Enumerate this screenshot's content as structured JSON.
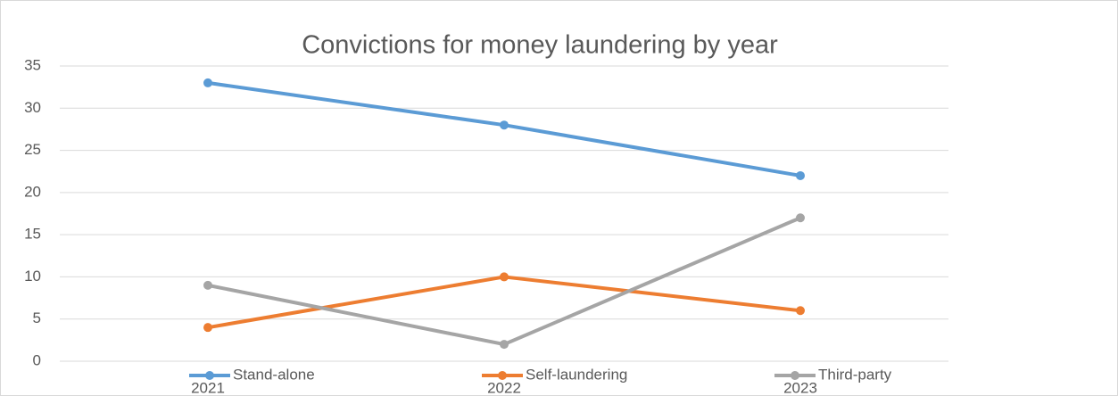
{
  "chart_data": {
    "type": "line",
    "title": "Convictions for money laundering by year",
    "categories": [
      "2021",
      "2022",
      "2023"
    ],
    "series": [
      {
        "name": "Stand-alone",
        "color": "#5b9bd5",
        "values": [
          33,
          28,
          22
        ]
      },
      {
        "name": "Self-laundering",
        "color": "#ed7d31",
        "values": [
          4,
          10,
          6
        ]
      },
      {
        "name": "Third-party",
        "color": "#a5a5a5",
        "values": [
          9,
          2,
          17
        ]
      }
    ],
    "ylim": [
      0,
      35
    ],
    "yticks": [
      0,
      5,
      10,
      15,
      20,
      25,
      30,
      35
    ],
    "grid": true,
    "legend": "bottom"
  }
}
